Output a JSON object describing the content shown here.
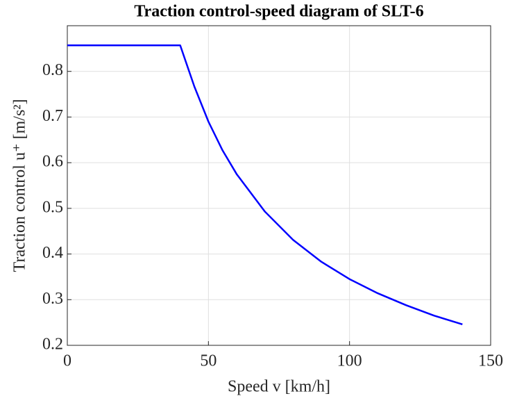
{
  "chart_data": {
    "type": "line",
    "title": "Traction control-speed diagram of SLT-6",
    "x_label": "Speed v [km/h]",
    "y_label": "Traction control u⁺ [m/s²]",
    "x": [
      0,
      40,
      42,
      45,
      50,
      55,
      60,
      70,
      80,
      90,
      100,
      110,
      120,
      130,
      140
    ],
    "series": [
      {
        "color": "#0000ff",
        "values": [
          0.857,
          0.857,
          0.821,
          0.767,
          0.69,
          0.627,
          0.575,
          0.493,
          0.431,
          0.383,
          0.345,
          0.314,
          0.288,
          0.265,
          0.246
        ]
      }
    ],
    "xlim": [
      0,
      150
    ],
    "xticks": [
      0,
      50,
      100,
      150
    ],
    "ylim": [
      0.2,
      0.9
    ],
    "yticks": [
      0.2,
      0.3,
      0.4,
      0.5,
      0.6,
      0.7,
      0.8
    ],
    "grid": true
  }
}
